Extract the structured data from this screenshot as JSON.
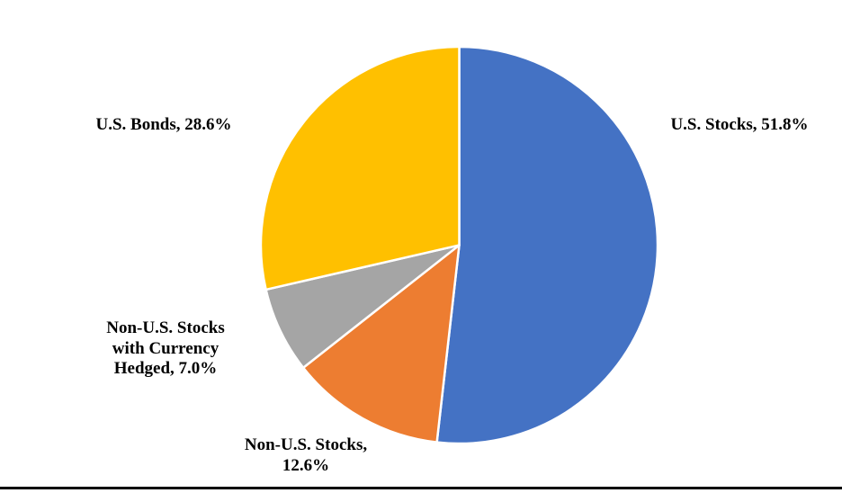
{
  "chart_data": {
    "type": "pie",
    "title": "",
    "legend": "none",
    "start_angle_deg": 0,
    "direction": "clockwise",
    "label_style": "outside, bold serif, category name plus percent",
    "slice_border_color": "#FFFFFF",
    "background_color": "#FFFFFF",
    "bottom_rule_color": "#000000",
    "categories": [
      "U.S. Stocks",
      "Non-U.S. Stocks",
      "Non-U.S. Stocks with Currency Hedged",
      "U.S. Bonds"
    ],
    "values": [
      51.8,
      12.6,
      7.0,
      28.6
    ],
    "slices": [
      {
        "name": "U.S. Stocks",
        "value": 51.8,
        "color": "#4472C4",
        "label": "U.S. Stocks, 51.8%"
      },
      {
        "name": "Non-U.S. Stocks",
        "value": 12.6,
        "color": "#ED7D31",
        "label": "Non-U.S. Stocks,\n12.6%"
      },
      {
        "name": "Non-U.S. Stocks with Currency Hedged",
        "value": 7.0,
        "color": "#A5A5A5",
        "label": "Non-U.S. Stocks\nwith Currency\nHedged, 7.0%"
      },
      {
        "name": "U.S. Bonds",
        "value": 28.6,
        "color": "#FFC000",
        "label": "U.S. Bonds, 28.6%"
      }
    ]
  }
}
